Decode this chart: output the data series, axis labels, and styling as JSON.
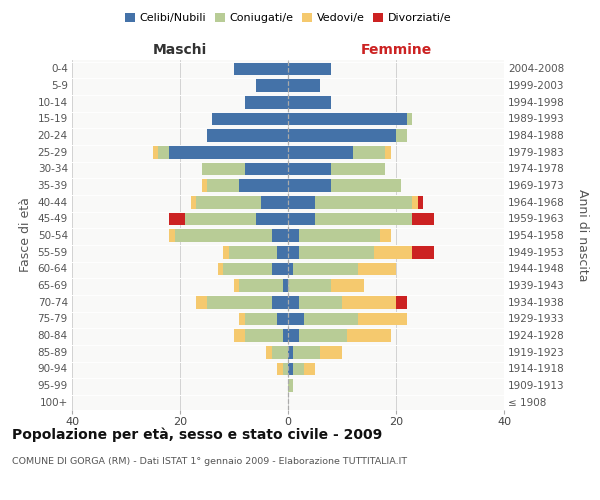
{
  "age_groups": [
    "100+",
    "95-99",
    "90-94",
    "85-89",
    "80-84",
    "75-79",
    "70-74",
    "65-69",
    "60-64",
    "55-59",
    "50-54",
    "45-49",
    "40-44",
    "35-39",
    "30-34",
    "25-29",
    "20-24",
    "15-19",
    "10-14",
    "5-9",
    "0-4"
  ],
  "birth_years": [
    "≤ 1908",
    "1909-1913",
    "1914-1918",
    "1919-1923",
    "1924-1928",
    "1929-1933",
    "1934-1938",
    "1939-1943",
    "1944-1948",
    "1949-1953",
    "1954-1958",
    "1959-1963",
    "1964-1968",
    "1969-1973",
    "1974-1978",
    "1979-1983",
    "1984-1988",
    "1989-1993",
    "1994-1998",
    "1999-2003",
    "2004-2008"
  ],
  "males": {
    "celibi": [
      0,
      0,
      0,
      0,
      1,
      2,
      3,
      1,
      3,
      2,
      3,
      6,
      5,
      9,
      8,
      22,
      15,
      14,
      8,
      6,
      10
    ],
    "coniugati": [
      0,
      0,
      1,
      3,
      7,
      6,
      12,
      8,
      9,
      9,
      18,
      13,
      12,
      6,
      8,
      2,
      0,
      0,
      0,
      0,
      0
    ],
    "vedovi": [
      0,
      0,
      1,
      1,
      2,
      1,
      2,
      1,
      1,
      1,
      1,
      0,
      1,
      1,
      0,
      1,
      0,
      0,
      0,
      0,
      0
    ],
    "divorziati": [
      0,
      0,
      0,
      0,
      0,
      0,
      0,
      0,
      0,
      0,
      0,
      3,
      0,
      0,
      0,
      0,
      0,
      0,
      0,
      0,
      0
    ]
  },
  "females": {
    "nubili": [
      0,
      0,
      1,
      1,
      2,
      3,
      2,
      0,
      1,
      2,
      2,
      5,
      5,
      8,
      8,
      12,
      20,
      22,
      8,
      6,
      8
    ],
    "coniugate": [
      0,
      1,
      2,
      5,
      9,
      10,
      8,
      8,
      12,
      14,
      15,
      18,
      18,
      13,
      10,
      6,
      2,
      1,
      0,
      0,
      0
    ],
    "vedove": [
      0,
      0,
      2,
      4,
      8,
      9,
      10,
      6,
      7,
      7,
      2,
      0,
      1,
      0,
      0,
      1,
      0,
      0,
      0,
      0,
      0
    ],
    "divorziate": [
      0,
      0,
      0,
      0,
      0,
      0,
      2,
      0,
      0,
      4,
      0,
      4,
      1,
      0,
      0,
      0,
      0,
      0,
      0,
      0,
      0
    ]
  },
  "colors": {
    "celibi_nubili": "#4472a8",
    "coniugati": "#b8cc96",
    "vedovi": "#f5c96e",
    "divorziati": "#cc2222"
  },
  "xlim": 40,
  "title": "Popolazione per età, sesso e stato civile - 2009",
  "subtitle": "COMUNE DI GORGA (RM) - Dati ISTAT 1° gennaio 2009 - Elaborazione TUTTITALIA.IT",
  "xlabel_left": "Maschi",
  "xlabel_right": "Femmine",
  "ylabel_left": "Fasce di età",
  "ylabel_right": "Anni di nascita",
  "bg_color": "#f9f9f8",
  "grid_color": "#cccccc"
}
